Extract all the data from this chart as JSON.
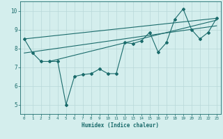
{
  "xlabel": "Humidex (Indice chaleur)",
  "x": [
    0,
    1,
    2,
    3,
    4,
    5,
    6,
    7,
    8,
    9,
    10,
    11,
    12,
    13,
    14,
    15,
    16,
    17,
    18,
    19,
    20,
    21,
    22,
    23
  ],
  "y": [
    8.5,
    7.75,
    7.3,
    7.3,
    7.3,
    5.0,
    6.5,
    6.6,
    6.65,
    6.9,
    6.65,
    6.65,
    8.3,
    8.25,
    8.4,
    8.85,
    7.8,
    8.3,
    9.55,
    10.1,
    9.0,
    8.5,
    8.85,
    9.6
  ],
  "trend1_x": [
    0,
    23
  ],
  "trend1_y": [
    8.5,
    9.6
  ],
  "trend2_x": [
    0,
    23
  ],
  "trend2_y": [
    7.75,
    9.2
  ],
  "trend3_x": [
    3,
    23
  ],
  "trend3_y": [
    7.3,
    9.5
  ],
  "bg_color": "#d4eeed",
  "line_color": "#1a6b6b",
  "grid_color": "#b8d8d8",
  "xlim": [
    -0.5,
    23.5
  ],
  "ylim": [
    4.5,
    10.5
  ],
  "xticks": [
    0,
    1,
    2,
    3,
    4,
    5,
    6,
    7,
    8,
    9,
    10,
    11,
    12,
    13,
    14,
    15,
    16,
    17,
    18,
    19,
    20,
    21,
    22,
    23
  ],
  "yticks": [
    5,
    6,
    7,
    8,
    9,
    10
  ]
}
